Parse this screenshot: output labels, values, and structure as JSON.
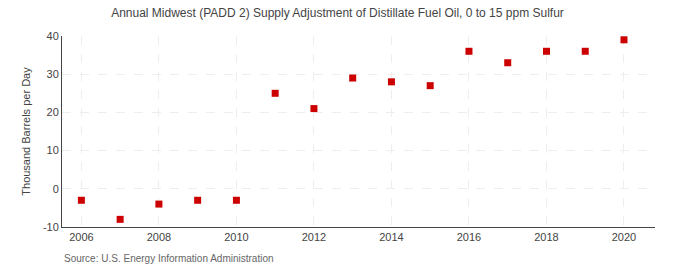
{
  "chart_data": {
    "type": "scatter",
    "title": "Annual Midwest (PADD 2) Supply Adjustment of Distillate Fuel Oil, 0 to 15 ppm Sulfur",
    "ylabel": "Thousand Barrels per Day",
    "source": "Source: U.S. Energy Information Administration",
    "x": [
      2006,
      2007,
      2008,
      2009,
      2010,
      2011,
      2012,
      2013,
      2014,
      2015,
      2016,
      2017,
      2018,
      2019,
      2020
    ],
    "values": [
      -3.0,
      -8.0,
      -4.0,
      -3.0,
      -3.0,
      25.0,
      21.0,
      29.0,
      28.0,
      27.0,
      36.0,
      33.0,
      36.0,
      36.0,
      39.0
    ],
    "color": "#cc0000",
    "marker": "square",
    "xlim": [
      2005.5,
      2020.8
    ],
    "ylim": [
      -10,
      40
    ],
    "xticks": [
      2006,
      2008,
      2010,
      2012,
      2014,
      2016,
      2018,
      2020
    ],
    "yticks": [
      -10,
      0,
      10,
      20,
      30,
      40
    ],
    "grid": true
  }
}
